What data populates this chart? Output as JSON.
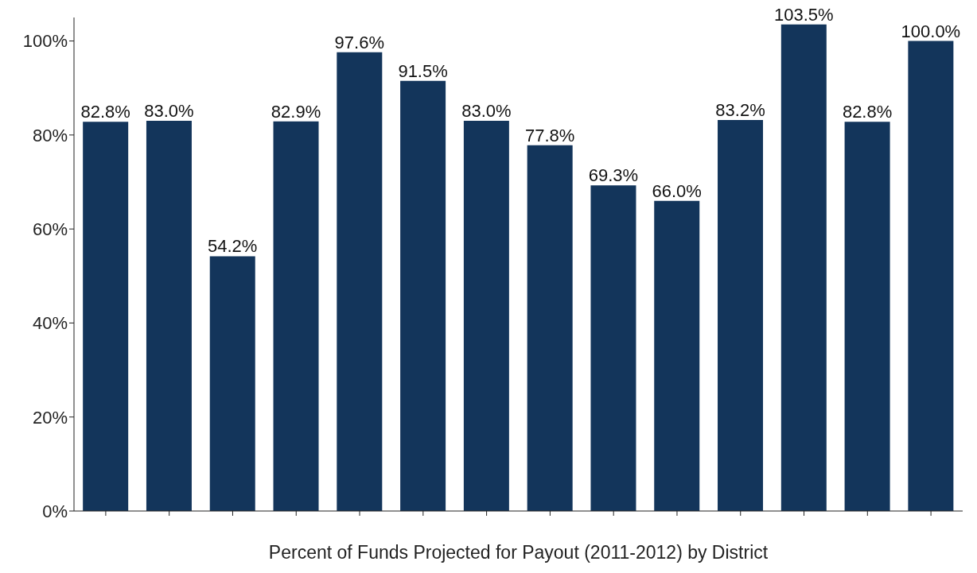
{
  "chart_data": {
    "type": "bar",
    "xlabel": "Percent of Funds Projected for Payout (2011-2012) by District",
    "categories": [
      null,
      null,
      null,
      null,
      null,
      null,
      null,
      null,
      null,
      null,
      null,
      null,
      null,
      null
    ],
    "values": [
      82.8,
      83.0,
      54.2,
      82.9,
      97.6,
      91.5,
      83.0,
      77.8,
      69.3,
      66.0,
      83.2,
      103.5,
      82.8,
      100.0
    ],
    "value_labels": [
      "82.8%",
      "83.0%",
      "54.2%",
      "82.9%",
      "97.6%",
      "91.5%",
      "83.0%",
      "77.8%",
      "69.3%",
      "66.0%",
      "83.2%",
      "103.5%",
      "82.8%",
      "100.0%"
    ],
    "color": "#13355b",
    "ylim": [
      0,
      105
    ],
    "yticks": [
      {
        "value": 0,
        "label": "0%"
      },
      {
        "value": 20,
        "label": "20%"
      },
      {
        "value": 40,
        "label": "40%"
      },
      {
        "value": 60,
        "label": "60%"
      },
      {
        "value": 80,
        "label": "80%"
      },
      {
        "value": 100,
        "label": "100%"
      }
    ],
    "grid": false
  }
}
